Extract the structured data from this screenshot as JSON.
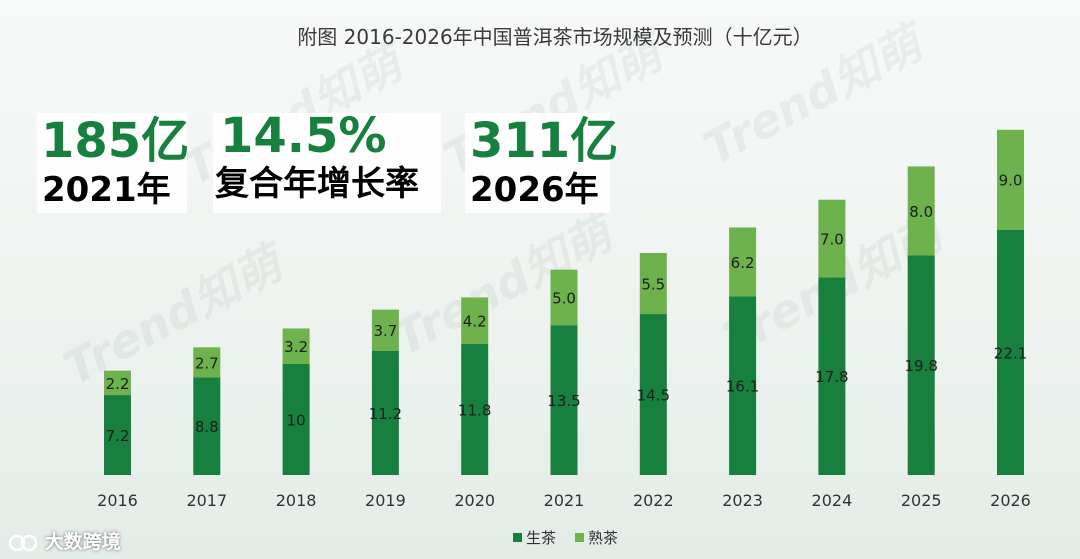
{
  "chart_data": {
    "type": "bar",
    "stacked": true,
    "title": "附图 2016-2026年中国普洱茶市场规模及预测（十亿元）",
    "categories": [
      "2016",
      "2017",
      "2018",
      "2019",
      "2020",
      "2021",
      "2022",
      "2023",
      "2024",
      "2025",
      "2026"
    ],
    "series": [
      {
        "name": "生茶",
        "color": "#17803f",
        "values": [
          7.2,
          8.8,
          10,
          11.2,
          11.8,
          13.5,
          14.5,
          16.1,
          17.8,
          19.8,
          22.1
        ],
        "labels": [
          "7.2",
          "8.8",
          "10",
          "11.2",
          "11.8",
          "13.5",
          "14.5",
          "16.1",
          "17.8",
          "19.8",
          "22.1"
        ]
      },
      {
        "name": "熟茶",
        "color": "#6db24c",
        "values": [
          2.2,
          2.7,
          3.2,
          3.7,
          4.2,
          5.0,
          5.5,
          6.2,
          7.0,
          8.0,
          9.0
        ],
        "labels": [
          "2.2",
          "2.7",
          "3.2",
          "3.7",
          "4.2",
          "5.0",
          "5.5",
          "6.2",
          "7.0",
          "8.0",
          "9.0"
        ]
      }
    ],
    "ylim": [
      0,
      32
    ],
    "grid": false,
    "legend": "bottom-center",
    "xlabel": "",
    "ylabel": ""
  },
  "highlights": [
    {
      "value": "185亿",
      "label": "2021年"
    },
    {
      "value": "14.5%",
      "label": "复合年增长率"
    },
    {
      "value": "311亿",
      "label": "2026年"
    }
  ],
  "watermark": "Trend知萌",
  "source": "大数跨境"
}
